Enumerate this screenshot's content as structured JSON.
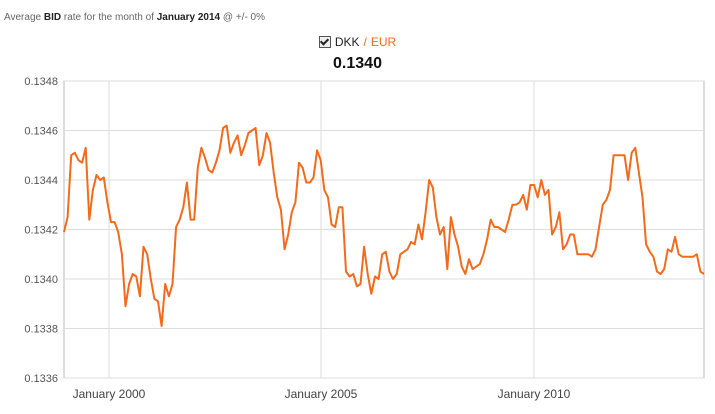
{
  "header": {
    "caption_prefix": "Average",
    "caption_bid": "BID",
    "caption_mid": "rate for the month of",
    "caption_month": "January 2014",
    "caption_suffix": "@ +/- 0%"
  },
  "legend": {
    "base": "DKK",
    "separator": "/",
    "quote": "EUR",
    "value": "0.1340",
    "checked": true
  },
  "colors": {
    "line": "#f26b1d",
    "grid": "#dddddd",
    "plot_border": "#bbbbbb"
  },
  "chart_data": {
    "type": "line",
    "series": [
      {
        "values": [
          0.13419,
          0.13425,
          0.1345,
          0.13451,
          0.13448,
          0.13447,
          0.13453,
          0.13424,
          0.13436,
          0.13442,
          0.1344,
          0.13441,
          0.13431,
          0.13423,
          0.13423,
          0.13419,
          0.1341,
          0.13389,
          0.13398,
          0.13402,
          0.13401,
          0.13393,
          0.13413,
          0.1341,
          0.134,
          0.13392,
          0.13391,
          0.13381,
          0.13398,
          0.13393,
          0.13398,
          0.13421,
          0.13424,
          0.13429,
          0.13439,
          0.13424,
          0.13424,
          0.13445,
          0.13453,
          0.13449,
          0.13444,
          0.13443,
          0.13447,
          0.13452,
          0.13461,
          0.13462,
          0.13451,
          0.13455,
          0.13458,
          0.1345,
          0.13454,
          0.13459,
          0.1346,
          0.13461,
          0.13446,
          0.1345,
          0.13459,
          0.13455,
          0.13443,
          0.13433,
          0.13428,
          0.13412,
          0.13418,
          0.13427,
          0.13431,
          0.13447,
          0.13445,
          0.13439,
          0.13439,
          0.13441,
          0.13452,
          0.13448,
          0.13436,
          0.13433,
          0.13422,
          0.13421,
          0.13429,
          0.13429,
          0.13403,
          0.13401,
          0.13402,
          0.13397,
          0.13398,
          0.13413,
          0.13402,
          0.13394,
          0.13401,
          0.134,
          0.1341,
          0.13411,
          0.13403,
          0.134,
          0.13402,
          0.1341,
          0.13411,
          0.13412,
          0.13415,
          0.13414,
          0.13422,
          0.13416,
          0.13427,
          0.1344,
          0.13437,
          0.13425,
          0.13418,
          0.13421,
          0.13404,
          0.13425,
          0.13418,
          0.13413,
          0.13405,
          0.13402,
          0.13408,
          0.13404,
          0.13405,
          0.13406,
          0.1341,
          0.13416,
          0.13424,
          0.13421,
          0.13421,
          0.1342,
          0.13419,
          0.13424,
          0.1343,
          0.1343,
          0.13431,
          0.13434,
          0.13428,
          0.13438,
          0.13438,
          0.13433,
          0.1344,
          0.13434,
          0.13436,
          0.13418,
          0.13421,
          0.13427,
          0.13412,
          0.13414,
          0.13418,
          0.13418,
          0.1341,
          0.1341,
          0.1341,
          0.1341,
          0.13409,
          0.13412,
          0.13421,
          0.1343,
          0.13432,
          0.13436,
          0.1345,
          0.1345,
          0.1345,
          0.1345,
          0.1344,
          0.13451,
          0.13453,
          0.13443,
          0.13433,
          0.13414,
          0.13411,
          0.13409,
          0.13403,
          0.13402,
          0.13404,
          0.13412,
          0.13411,
          0.13417,
          0.1341,
          0.13409,
          0.13409,
          0.13409,
          0.13409,
          0.1341,
          0.13403,
          0.13402
        ]
      }
    ],
    "x_tick_labels": [
      "January 2000",
      "January 2005",
      "January 2010"
    ],
    "y_tick_labels": [
      "0.1336",
      "0.1338",
      "0.1340",
      "0.1342",
      "0.1344",
      "0.1346",
      "0.1348"
    ],
    "ylim": [
      0.1336,
      0.1348
    ],
    "grid": true,
    "legend_position": "top-center",
    "title": "",
    "xlabel": "",
    "ylabel": ""
  }
}
